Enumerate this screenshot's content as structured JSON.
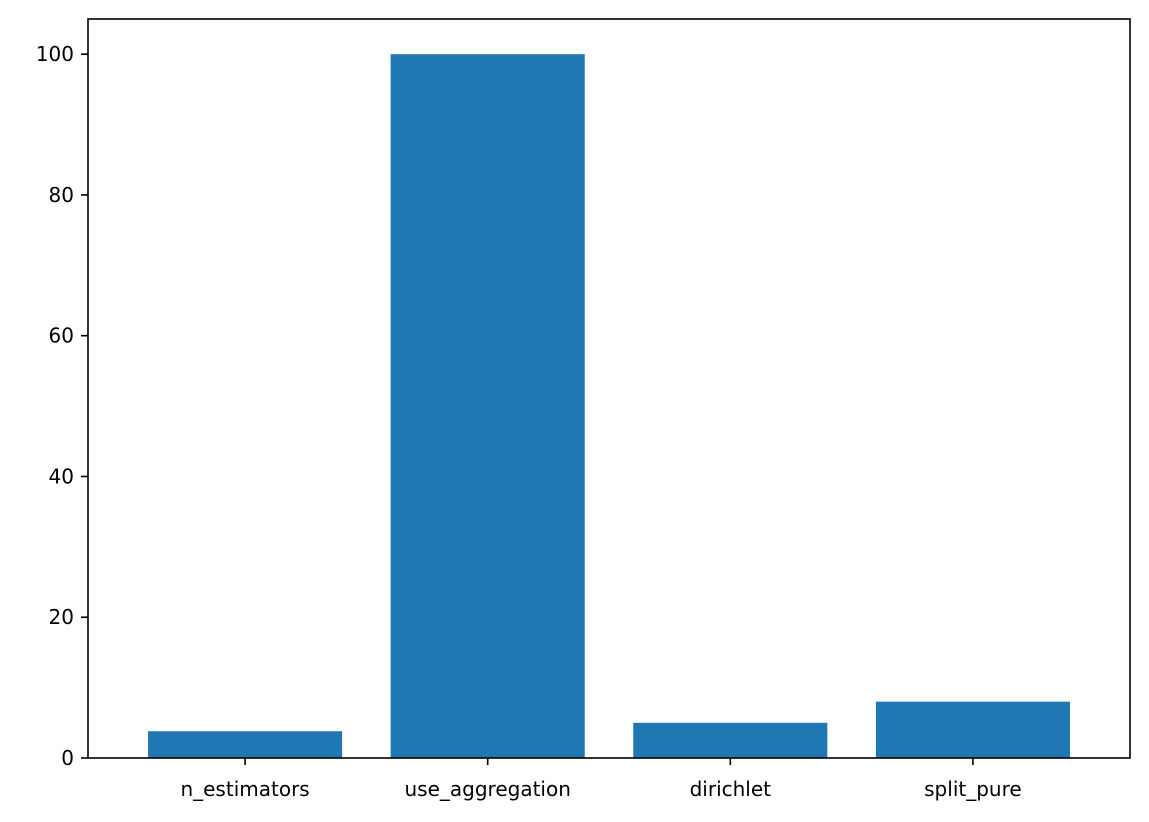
{
  "chart_data": {
    "type": "bar",
    "title": "",
    "xlabel": "",
    "ylabel": "",
    "categories": [
      "n_estimators",
      "use_aggregation",
      "dirichlet",
      "split_pure"
    ],
    "values": [
      3.8,
      100.0,
      5.0,
      8.0
    ],
    "ylim": [
      0,
      105
    ],
    "yticks": [
      0,
      20,
      40,
      60,
      80,
      100
    ],
    "grid": false,
    "legend": "none",
    "bar_color": "#1f77b4",
    "axis_color": "#000000"
  }
}
